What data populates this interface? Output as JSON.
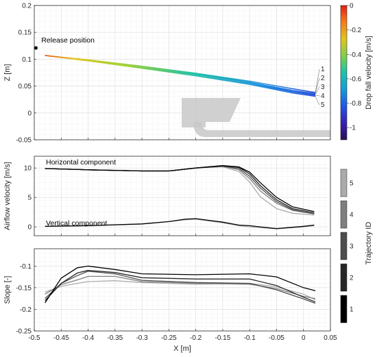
{
  "chart_data": [
    {
      "type": "line",
      "panel": "top",
      "ylabel": "Z [m]",
      "xlim": [
        -0.5,
        0.05
      ],
      "ylim": [
        -0.05,
        0.2
      ],
      "xticks": [
        -0.5,
        -0.45,
        -0.4,
        -0.35,
        -0.3,
        -0.25,
        -0.2,
        -0.15,
        -0.1,
        -0.05,
        0,
        0.05
      ],
      "yticks": [
        -0.05,
        0,
        0.05,
        0.1,
        0.15,
        0.2
      ],
      "ytick_labels": [
        "-0.05",
        "0",
        "0.05",
        "0.1",
        "0.15",
        "0.2"
      ],
      "grid": true,
      "release": {
        "label": "Release position",
        "x": -0.497,
        "z": 0.121
      },
      "colorbar": {
        "label": "Drop fall velocity [m/s]",
        "range": [
          -1.1,
          0
        ],
        "ticks": [
          0,
          -0.2,
          -0.4,
          -0.6,
          -0.8,
          -1
        ],
        "tick_labels": [
          "0",
          "-0.2",
          "-0.4",
          "-0.6",
          "-0.8",
          "-1"
        ],
        "colormap": "jet"
      },
      "trajectory_labels": [
        "1",
        "2",
        "3",
        "4",
        "5"
      ],
      "series": [
        {
          "x": [
            -0.48,
            -0.4,
            -0.3,
            -0.2,
            -0.1,
            -0.02,
            0.022
          ],
          "y": [
            0.107,
            0.099,
            0.087,
            0.074,
            0.059,
            0.045,
            0.038
          ]
        },
        {
          "x": [
            -0.48,
            -0.4,
            -0.3,
            -0.2,
            -0.1,
            -0.02,
            0.022
          ],
          "y": [
            0.107,
            0.098,
            0.086,
            0.073,
            0.057,
            0.042,
            0.036
          ]
        },
        {
          "x": [
            -0.48,
            -0.4,
            -0.3,
            -0.2,
            -0.1,
            -0.02,
            0.022
          ],
          "y": [
            0.107,
            0.098,
            0.085,
            0.072,
            0.056,
            0.04,
            0.034
          ]
        },
        {
          "x": [
            -0.48,
            -0.4,
            -0.3,
            -0.2,
            -0.1,
            -0.02,
            0.022
          ],
          "y": [
            0.107,
            0.097,
            0.084,
            0.07,
            0.054,
            0.039,
            0.033
          ]
        },
        {
          "x": [
            -0.48,
            -0.4,
            -0.3,
            -0.2,
            -0.1,
            -0.02,
            0.022
          ],
          "y": [
            0.107,
            0.097,
            0.083,
            0.069,
            0.053,
            0.037,
            0.031
          ]
        }
      ],
      "velocity_along_x": {
        "x": [
          -0.48,
          -0.35,
          -0.2,
          -0.1,
          0.022
        ],
        "v": [
          -0.05,
          -0.35,
          -0.55,
          -0.75,
          -0.85
        ]
      }
    },
    {
      "type": "line",
      "panel": "middle",
      "ylabel": "Airflow velocity [m/s]",
      "xlim": [
        -0.5,
        0.05
      ],
      "ylim": [
        -1.5,
        12
      ],
      "yticks": [
        0,
        5,
        10
      ],
      "ytick_labels": [
        "0",
        "5",
        "10"
      ],
      "grid": true,
      "annotations": [
        "Horizontal component",
        "Vertical component"
      ],
      "colorbar": {
        "label": "Trajectory ID",
        "tick_labels": [
          "1",
          "2",
          "3",
          "4",
          "5"
        ],
        "colors": [
          "#000000",
          "#262626",
          "#4d4d4d",
          "#7f7f7f",
          "#ababab"
        ]
      },
      "series": [
        {
          "component": "horizontal",
          "trajectory": "1",
          "x": [
            -0.48,
            -0.4,
            -0.3,
            -0.25,
            -0.2,
            -0.15,
            -0.12,
            -0.1,
            -0.08,
            -0.05,
            -0.02,
            0.02
          ],
          "y": [
            9.9,
            9.7,
            9.5,
            9.5,
            10.0,
            10.4,
            10.2,
            9.3,
            7.5,
            5.0,
            3.4,
            2.6
          ]
        },
        {
          "component": "horizontal",
          "trajectory": "2",
          "x": [
            -0.48,
            -0.4,
            -0.3,
            -0.25,
            -0.2,
            -0.15,
            -0.12,
            -0.1,
            -0.08,
            -0.05,
            -0.02,
            0.02
          ],
          "y": [
            9.9,
            9.7,
            9.5,
            9.5,
            10.0,
            10.4,
            10.1,
            9.0,
            7.0,
            4.6,
            3.1,
            2.4
          ]
        },
        {
          "component": "horizontal",
          "trajectory": "3",
          "x": [
            -0.48,
            -0.4,
            -0.3,
            -0.25,
            -0.2,
            -0.15,
            -0.12,
            -0.1,
            -0.08,
            -0.05,
            -0.02,
            0.02
          ],
          "y": [
            9.9,
            9.7,
            9.5,
            9.5,
            10.0,
            10.3,
            9.9,
            8.6,
            6.6,
            4.3,
            2.9,
            2.2
          ]
        },
        {
          "component": "horizontal",
          "trajectory": "4",
          "x": [
            -0.48,
            -0.4,
            -0.3,
            -0.25,
            -0.2,
            -0.15,
            -0.12,
            -0.1,
            -0.08,
            -0.05,
            -0.02,
            0.02
          ],
          "y": [
            9.9,
            9.7,
            9.5,
            9.5,
            10.0,
            10.3,
            9.7,
            8.2,
            6.1,
            4.0,
            2.8,
            2.2
          ]
        },
        {
          "component": "horizontal",
          "trajectory": "5",
          "x": [
            -0.48,
            -0.4,
            -0.3,
            -0.25,
            -0.2,
            -0.15,
            -0.12,
            -0.1,
            -0.08,
            -0.05,
            -0.02,
            0.02
          ],
          "y": [
            9.9,
            9.7,
            9.5,
            9.5,
            10.0,
            10.2,
            9.4,
            7.6,
            5.1,
            3.1,
            2.3,
            2.0
          ]
        },
        {
          "component": "vertical",
          "trajectory": "1",
          "x": [
            -0.48,
            -0.4,
            -0.3,
            -0.25,
            -0.22,
            -0.2,
            -0.15,
            -0.12,
            -0.1,
            -0.05,
            0,
            0.02
          ],
          "y": [
            0.1,
            0.2,
            0.5,
            0.9,
            1.3,
            1.4,
            0.8,
            0.3,
            0.2,
            -0.3,
            0.1,
            0.3
          ]
        },
        {
          "component": "vertical",
          "trajectory": "5",
          "x": [
            -0.48,
            -0.4,
            -0.3,
            -0.25,
            -0.22,
            -0.2,
            -0.15,
            -0.12,
            -0.1,
            -0.05,
            0,
            0.02
          ],
          "y": [
            0.1,
            0.2,
            0.5,
            0.9,
            1.2,
            1.3,
            0.7,
            0.2,
            0.0,
            -0.3,
            0.0,
            0.2
          ]
        }
      ]
    },
    {
      "type": "line",
      "panel": "bottom",
      "ylabel": "Slope [-]",
      "xlabel": "X [m]",
      "xlim": [
        -0.5,
        0.05
      ],
      "ylim": [
        -0.25,
        -0.06
      ],
      "yticks": [
        -0.25,
        -0.2,
        -0.15,
        -0.1
      ],
      "ytick_labels": [
        "-0.25",
        "-0.2",
        "-0.15",
        "-0.1"
      ],
      "xtick_labels": [
        "-0.5",
        "-0.45",
        "-0.4",
        "-0.35",
        "-0.3",
        "-0.25",
        "-0.2",
        "-0.15",
        "-0.1",
        "-0.05",
        "0",
        "0.05"
      ],
      "grid": true,
      "series": [
        {
          "trajectory": "1",
          "x": [
            -0.48,
            -0.45,
            -0.42,
            -0.4,
            -0.35,
            -0.3,
            -0.2,
            -0.1,
            -0.05,
            0,
            0.022
          ],
          "y": [
            -0.185,
            -0.128,
            -0.104,
            -0.1,
            -0.108,
            -0.118,
            -0.12,
            -0.118,
            -0.125,
            -0.15,
            -0.157
          ]
        },
        {
          "trajectory": "2",
          "x": [
            -0.48,
            -0.45,
            -0.42,
            -0.4,
            -0.35,
            -0.3,
            -0.2,
            -0.1,
            -0.05,
            0,
            0.022
          ],
          "y": [
            -0.18,
            -0.14,
            -0.116,
            -0.11,
            -0.115,
            -0.127,
            -0.13,
            -0.13,
            -0.145,
            -0.172,
            -0.183
          ]
        },
        {
          "trajectory": "3",
          "x": [
            -0.48,
            -0.45,
            -0.42,
            -0.4,
            -0.35,
            -0.3,
            -0.2,
            -0.1,
            -0.05,
            0,
            0.022
          ],
          "y": [
            -0.175,
            -0.14,
            -0.122,
            -0.112,
            -0.118,
            -0.133,
            -0.138,
            -0.14,
            -0.155,
            -0.176,
            -0.186
          ]
        },
        {
          "trajectory": "4",
          "x": [
            -0.48,
            -0.45,
            -0.42,
            -0.4,
            -0.35,
            -0.3,
            -0.2,
            -0.1,
            -0.05,
            0,
            0.022
          ],
          "y": [
            -0.165,
            -0.143,
            -0.132,
            -0.124,
            -0.124,
            -0.136,
            -0.14,
            -0.142,
            -0.152,
            -0.17,
            -0.175
          ]
        },
        {
          "trajectory": "5",
          "x": [
            -0.48,
            -0.45,
            -0.42,
            -0.4,
            -0.35,
            -0.3,
            -0.2,
            -0.1,
            -0.05,
            0,
            0.022
          ],
          "y": [
            -0.16,
            -0.147,
            -0.14,
            -0.136,
            -0.134,
            -0.138,
            -0.142,
            -0.14,
            -0.148,
            -0.165,
            -0.178
          ]
        }
      ]
    }
  ]
}
